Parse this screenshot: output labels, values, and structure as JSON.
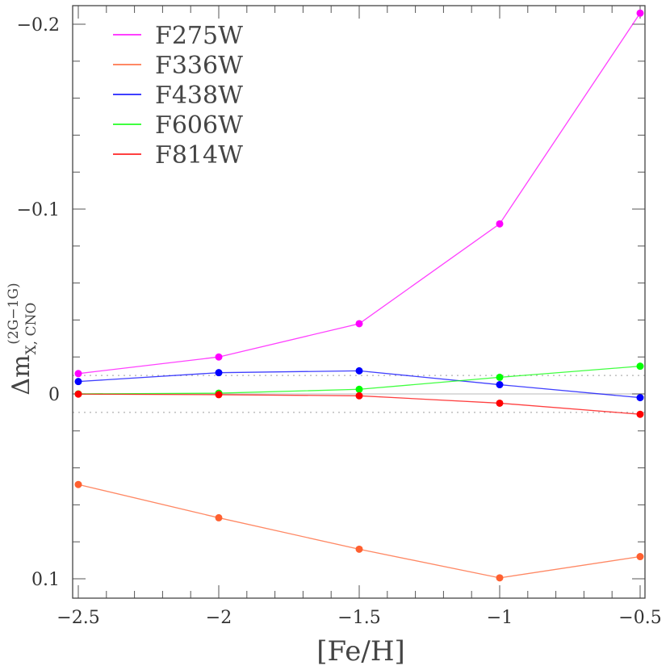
{
  "chart_data": {
    "type": "line",
    "title": "",
    "xlabel": "[Fe/H]",
    "ylabel": "Δm_{X, CNO}^{(2G−1G)}",
    "ylabel_main": "Δm",
    "ylabel_sub": "X, CNO",
    "ylabel_sup": "(2G−1G)",
    "xlim": [
      -2.52,
      -0.48
    ],
    "ylim": [
      -0.21,
      0.109
    ],
    "y_inverted": true,
    "x": [
      -2.5,
      -2.0,
      -1.5,
      -1.0,
      -0.5
    ],
    "x_ticks": [
      -2.5,
      -2,
      -1.5,
      -1,
      -0.5
    ],
    "x_tick_labels": [
      "−2.5",
      "−2",
      "−1.5",
      "−1",
      "−0.5"
    ],
    "y_ticks": [
      -0.2,
      -0.1,
      0,
      0.1
    ],
    "y_tick_labels": [
      "−0.2",
      "−0.1",
      "0",
      "0.1"
    ],
    "reference_lines": [
      {
        "y": 0,
        "style": "solid",
        "color": "#c8c8c8"
      },
      {
        "y": -0.01,
        "style": "dotted",
        "color": "#b0b0b0"
      },
      {
        "y": 0.01,
        "style": "dotted",
        "color": "#b0b0b0"
      }
    ],
    "legend_position": "upper-left",
    "series": [
      {
        "name": "F275W",
        "color": "#ff00ff",
        "values": [
          -0.011,
          -0.02,
          -0.038,
          -0.092,
          -0.206
        ]
      },
      {
        "name": "F336W",
        "color": "#ff6030",
        "values": [
          0.049,
          0.067,
          0.084,
          0.0995,
          0.088
        ]
      },
      {
        "name": "F438W",
        "color": "#0000ff",
        "values": [
          -0.0067,
          -0.0115,
          -0.0125,
          -0.005,
          0.002
        ]
      },
      {
        "name": "F606W",
        "color": "#00ff00",
        "values": [
          0.0,
          -0.0004,
          -0.0025,
          -0.009,
          -0.015
        ]
      },
      {
        "name": "F814W",
        "color": "#ff0000",
        "values": [
          0.0001,
          0.0004,
          0.001,
          0.005,
          0.011
        ]
      }
    ]
  }
}
